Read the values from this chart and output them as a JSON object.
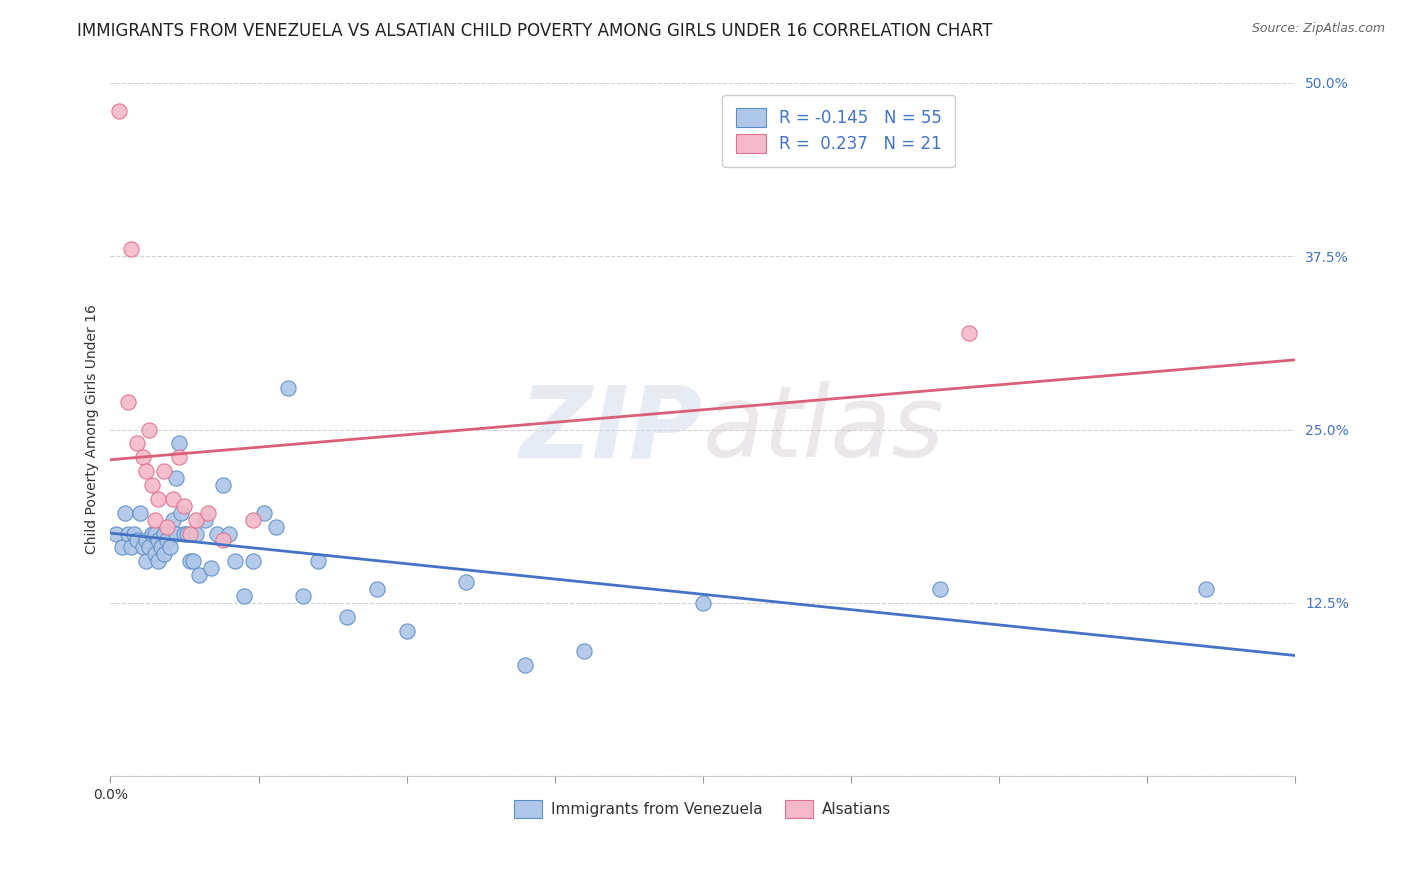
{
  "title": "IMMIGRANTS FROM VENEZUELA VS ALSATIAN CHILD POVERTY AMONG GIRLS UNDER 16 CORRELATION CHART",
  "source": "Source: ZipAtlas.com",
  "ylabel": "Child Poverty Among Girls Under 16",
  "xlim": [
    0.0,
    0.4
  ],
  "ylim": [
    0.0,
    0.5
  ],
  "xticks": [
    0.0,
    0.05,
    0.1,
    0.15,
    0.2,
    0.25,
    0.3,
    0.35,
    0.4
  ],
  "xticklabels_edge": {
    "0.0": "0.0%"
  },
  "yticks": [
    0.0,
    0.125,
    0.25,
    0.375,
    0.5
  ],
  "yticklabels": [
    "",
    "12.5%",
    "25.0%",
    "37.5%",
    "50.0%"
  ],
  "blue_R": -0.145,
  "blue_N": 55,
  "pink_R": 0.237,
  "pink_N": 21,
  "blue_color": "#aec6e8",
  "pink_color": "#f4b8c8",
  "blue_edge_color": "#5b8ec4",
  "pink_edge_color": "#e07090",
  "blue_line_color": "#4472c4",
  "pink_line_color": "#d9607a",
  "watermark_zip": "ZIP",
  "watermark_atlas": "atlas",
  "legend_label_blue": "Immigrants from Venezuela",
  "legend_label_pink": "Alsatians",
  "blue_x": [
    0.002,
    0.004,
    0.005,
    0.006,
    0.007,
    0.008,
    0.009,
    0.01,
    0.011,
    0.012,
    0.012,
    0.013,
    0.014,
    0.015,
    0.015,
    0.016,
    0.016,
    0.017,
    0.018,
    0.018,
    0.019,
    0.02,
    0.021,
    0.022,
    0.022,
    0.023,
    0.024,
    0.025,
    0.026,
    0.027,
    0.028,
    0.029,
    0.03,
    0.032,
    0.034,
    0.036,
    0.038,
    0.04,
    0.042,
    0.045,
    0.048,
    0.052,
    0.056,
    0.06,
    0.065,
    0.07,
    0.08,
    0.09,
    0.1,
    0.12,
    0.14,
    0.16,
    0.2,
    0.28,
    0.37
  ],
  "blue_y": [
    0.175,
    0.165,
    0.19,
    0.175,
    0.165,
    0.175,
    0.17,
    0.19,
    0.165,
    0.155,
    0.17,
    0.165,
    0.175,
    0.16,
    0.175,
    0.155,
    0.17,
    0.165,
    0.175,
    0.16,
    0.17,
    0.165,
    0.185,
    0.175,
    0.215,
    0.24,
    0.19,
    0.175,
    0.175,
    0.155,
    0.155,
    0.175,
    0.145,
    0.185,
    0.15,
    0.175,
    0.21,
    0.175,
    0.155,
    0.13,
    0.155,
    0.19,
    0.18,
    0.28,
    0.13,
    0.155,
    0.115,
    0.135,
    0.105,
    0.14,
    0.08,
    0.09,
    0.125,
    0.135,
    0.135
  ],
  "pink_x": [
    0.003,
    0.006,
    0.007,
    0.009,
    0.011,
    0.012,
    0.013,
    0.014,
    0.015,
    0.016,
    0.018,
    0.019,
    0.021,
    0.023,
    0.025,
    0.027,
    0.029,
    0.033,
    0.038,
    0.048,
    0.29
  ],
  "pink_y": [
    0.48,
    0.27,
    0.38,
    0.24,
    0.23,
    0.22,
    0.25,
    0.21,
    0.185,
    0.2,
    0.22,
    0.18,
    0.2,
    0.23,
    0.195,
    0.175,
    0.185,
    0.19,
    0.17,
    0.185,
    0.32
  ],
  "background_color": "#ffffff",
  "grid_color": "#cccccc",
  "title_fontsize": 12,
  "label_fontsize": 10,
  "tick_fontsize": 10,
  "point_size": 120
}
